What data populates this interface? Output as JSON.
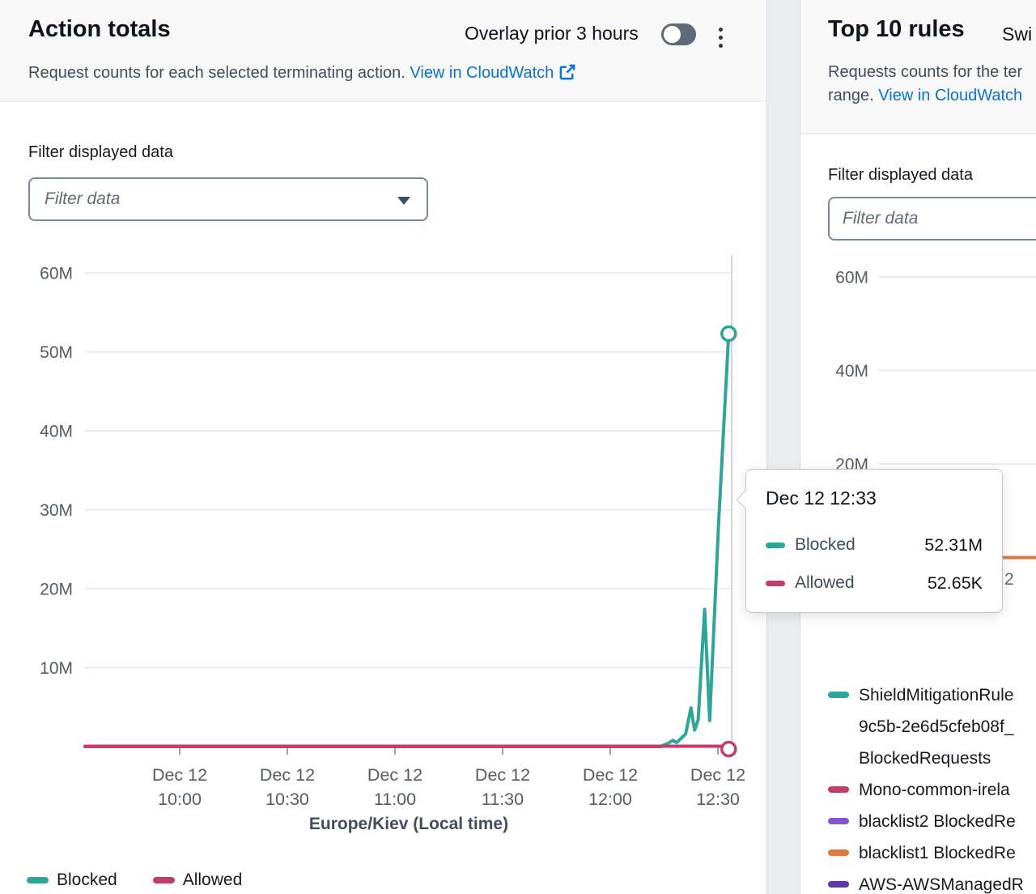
{
  "colors": {
    "teal": "#2ea597",
    "crimson": "#c33d69",
    "purple": "#8456ce",
    "orange": "#e07941",
    "dark_purple": "#6237a7",
    "link_blue": "#0972d3"
  },
  "left_panel": {
    "title": "Action totals",
    "overlay_toggle_label": "Overlay prior 3 hours",
    "overlay_toggle_state": "off",
    "description": "Request counts for each selected terminating action.",
    "cloudwatch_link": "View in CloudWatch",
    "filter_label": "Filter displayed data",
    "filter_placeholder": "Filter data",
    "xaxis_title": "Europe/Kiev (Local time)",
    "legend": [
      {
        "label": "Blocked",
        "color": "#2ea597"
      },
      {
        "label": "Allowed",
        "color": "#c33d69"
      }
    ]
  },
  "tooltip": {
    "title": "Dec 12 12:33",
    "rows": [
      {
        "label": "Blocked",
        "value": "52.31M",
        "color": "#2ea597"
      },
      {
        "label": "Allowed",
        "value": "52.65K",
        "color": "#c33d69"
      }
    ]
  },
  "right_panel": {
    "title": "Top 10 rules",
    "header_suffix": "Swi",
    "description_line1": "Requests counts for the ter",
    "description_line2_text": "range.",
    "cloudwatch_link": "View in CloudWatch",
    "filter_label": "Filter displayed data",
    "filter_placeholder": "Filter data",
    "xaxis_fragment": "2",
    "legend": [
      {
        "color": "#2ea597",
        "lines": [
          "ShieldMitigationRule",
          "9c5b-2e6d5cfeb08f_",
          "BlockedRequests"
        ]
      },
      {
        "color": "#c33d69",
        "lines": [
          "Mono-common-irela"
        ]
      },
      {
        "color": "#8456ce",
        "lines": [
          "blacklist2 BlockedRe"
        ]
      },
      {
        "color": "#e07941",
        "lines": [
          "blacklist1 BlockedRe"
        ]
      },
      {
        "color": "#6237a7",
        "lines": [
          "AWS-AWSManagedR"
        ]
      }
    ]
  },
  "chart_data": [
    {
      "type": "line",
      "title": "Action totals",
      "xlabel": "Europe/Kiev (Local time)",
      "x_window": [
        "Dec 12 09:33",
        "Dec 12 12:33"
      ],
      "ylim": [
        0,
        60000000
      ],
      "grid": true,
      "legend_position": "bottom",
      "x_ticks": [
        {
          "minute": 600,
          "label": [
            "Dec 12",
            "10:00"
          ]
        },
        {
          "minute": 630,
          "label": [
            "Dec 12",
            "10:30"
          ]
        },
        {
          "minute": 660,
          "label": [
            "Dec 12",
            "11:00"
          ]
        },
        {
          "minute": 690,
          "label": [
            "Dec 12",
            "11:30"
          ]
        },
        {
          "minute": 720,
          "label": [
            "Dec 12",
            "12:00"
          ]
        },
        {
          "minute": 750,
          "label": [
            "Dec 12",
            "12:30"
          ]
        }
      ],
      "y_ticks": [
        {
          "value": 10000000,
          "label": "10M"
        },
        {
          "value": 20000000,
          "label": "20M"
        },
        {
          "value": 30000000,
          "label": "30M"
        },
        {
          "value": 40000000,
          "label": "40M"
        },
        {
          "value": 50000000,
          "label": "50M"
        },
        {
          "value": 60000000,
          "label": "60M"
        }
      ],
      "series": [
        {
          "name": "Blocked",
          "color": "#2ea597",
          "points": [
            [
              573,
              0
            ],
            [
              734,
              0
            ],
            [
              736,
              400000
            ],
            [
              737.5,
              800000
            ],
            [
              738.5,
              500000
            ],
            [
              741,
              1600000
            ],
            [
              742.5,
              4900000
            ],
            [
              743.5,
              2100000
            ],
            [
              744.5,
              3400000
            ],
            [
              746.3,
              17400000
            ],
            [
              747.7,
              3300000
            ],
            [
              750.2,
              28400000
            ],
            [
              753,
              52310000
            ]
          ]
        },
        {
          "name": "Allowed",
          "color": "#c33d69",
          "points": [
            [
              573,
              52650
            ],
            [
              753,
              52650
            ]
          ]
        }
      ],
      "hover": {
        "time": "Dec 12 12:33",
        "minute": 753,
        "values": {
          "Blocked": "52.31M",
          "Allowed": "52.65K"
        }
      }
    },
    {
      "type": "line",
      "title": "Top 10 rules",
      "ylim": [
        0,
        65000000
      ],
      "grid": true,
      "y_ticks": [
        {
          "value": 20000000,
          "label": "20M"
        },
        {
          "value": 40000000,
          "label": "40M"
        },
        {
          "value": 60000000,
          "label": "60M"
        }
      ],
      "visible_note": "chart mostly occluded by tooltip; only a flat orange series near 0 is visible",
      "series": [
        {
          "name": "blacklist1 BlockedRe",
          "color": "#e07941",
          "points": [
            [
              741,
              0
            ],
            [
              756,
              0
            ]
          ]
        }
      ]
    }
  ]
}
